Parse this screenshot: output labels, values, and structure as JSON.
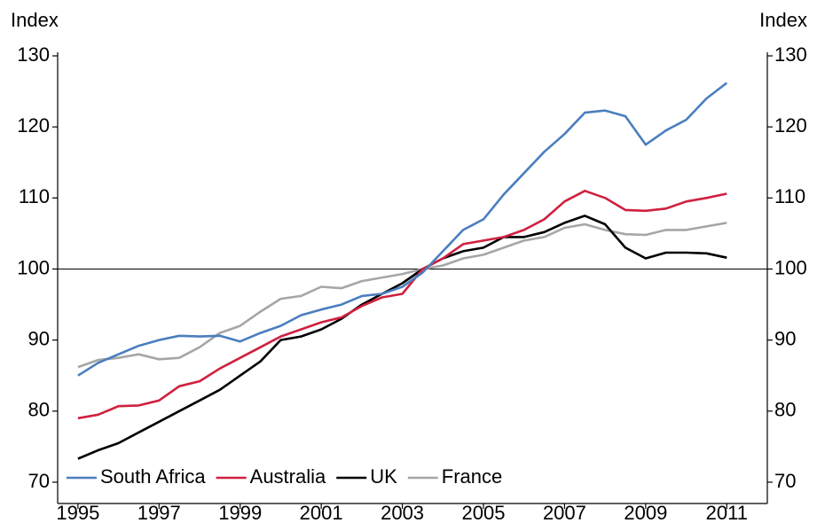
{
  "chart_data": {
    "type": "line",
    "ylabel": "Index",
    "y2label": "Index",
    "xlim": [
      1994.5,
      2012
    ],
    "xticks": [
      1995,
      1997,
      1999,
      2001,
      2003,
      2005,
      2007,
      2009,
      2011
    ],
    "ylim": [
      67,
      130.5
    ],
    "yticks": [
      70,
      80,
      90,
      100,
      110,
      120,
      130
    ],
    "y2lim": [
      67,
      130.5
    ],
    "y2ticks": [
      70,
      80,
      90,
      100,
      110,
      120,
      130
    ],
    "reference_line": 100,
    "legend": "lower left",
    "x": [
      1995.0,
      1995.5,
      1996.0,
      1996.5,
      1997.0,
      1997.5,
      1998.0,
      1998.5,
      1999.0,
      1999.5,
      2000.0,
      2000.5,
      2001.0,
      2001.5,
      2002.0,
      2002.5,
      2003.0,
      2003.5,
      2004.0,
      2004.5,
      2005.0,
      2005.5,
      2006.0,
      2006.5,
      2007.0,
      2007.5,
      2008.0,
      2008.5,
      2009.0,
      2009.5,
      2010.0,
      2010.5,
      2011.0
    ],
    "series": [
      {
        "name": "South Africa",
        "color": "#4a7ebf",
        "values": [
          85.0,
          86.8,
          88.0,
          89.2,
          90.0,
          90.6,
          90.5,
          90.6,
          89.8,
          91.0,
          92.0,
          93.5,
          94.3,
          95.0,
          96.2,
          96.5,
          97.5,
          99.5,
          102.5,
          105.5,
          107.0,
          110.5,
          113.5,
          116.5,
          119.0,
          122.0,
          122.3,
          121.5,
          117.5,
          119.5,
          121.0,
          124.0,
          126.2
        ]
      },
      {
        "name": "Australia",
        "color": "#d0203e",
        "values": [
          79.0,
          79.5,
          80.7,
          80.8,
          81.5,
          83.5,
          84.2,
          86.0,
          87.5,
          89.0,
          90.5,
          91.5,
          92.5,
          93.2,
          94.8,
          96.0,
          96.5,
          100.0,
          101.5,
          103.5,
          104.0,
          104.5,
          105.5,
          107.0,
          109.5,
          111.0,
          110.0,
          108.3,
          108.2,
          108.5,
          109.5,
          110.0,
          110.6
        ]
      },
      {
        "name": "UK",
        "color": "#000000",
        "values": [
          73.3,
          74.5,
          75.5,
          77.0,
          78.5,
          80.0,
          81.5,
          83.0,
          85.0,
          87.0,
          90.0,
          90.5,
          91.5,
          93.0,
          95.0,
          96.5,
          98.0,
          100.0,
          101.5,
          102.5,
          103.0,
          104.5,
          104.5,
          105.2,
          106.5,
          107.5,
          106.3,
          103.0,
          101.5,
          102.3,
          102.3,
          102.2,
          101.6
        ]
      },
      {
        "name": "France",
        "color": "#a6a6a6",
        "values": [
          86.2,
          87.2,
          87.5,
          88.0,
          87.3,
          87.5,
          89.0,
          91.0,
          92.0,
          94.0,
          95.8,
          96.2,
          97.5,
          97.3,
          98.3,
          98.8,
          99.3,
          100.0,
          100.5,
          101.5,
          102.0,
          103.0,
          104.0,
          104.5,
          105.8,
          106.3,
          105.5,
          104.9,
          104.8,
          105.5,
          105.5,
          106.0,
          106.5
        ]
      }
    ]
  }
}
